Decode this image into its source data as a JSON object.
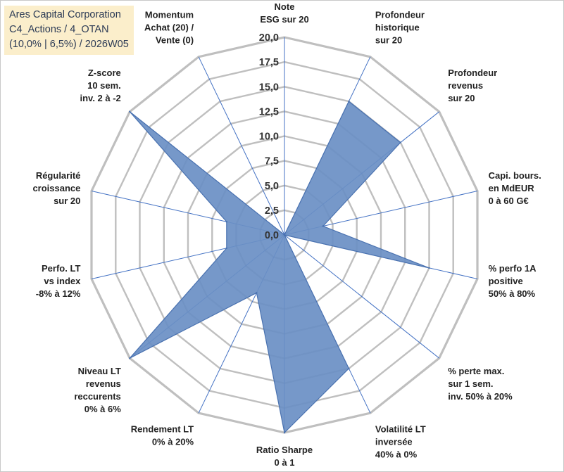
{
  "title_box": {
    "line1": "Ares Capital Corporation",
    "line2": "C4_Actions / 4_OTAN",
    "line3": "(10,0% | 6,5%) / 2026W05",
    "background": "#fbeecb",
    "text_color": "#2b3a55"
  },
  "chart_data": {
    "type": "radar",
    "title": "Ares Capital Corporation",
    "subtitle": "C4_Actions / 4_OTAN (10,0% | 6,5%) / 2026W05",
    "r_range": [
      0,
      20
    ],
    "grid": true,
    "legend": "none",
    "tick_values": [
      0,
      2.5,
      5,
      7.5,
      10,
      12.5,
      15,
      17.5,
      20
    ],
    "tick_labels": [
      "0,0",
      "2,5",
      "5,0",
      "7,5",
      "10,0",
      "12,5",
      "15,0",
      "17,5",
      "20,0"
    ],
    "axes": [
      {
        "label": [
          "Note",
          "ESG sur 20"
        ],
        "value": 0
      },
      {
        "label": [
          "Profondeur",
          "historique",
          "sur 20"
        ],
        "value": 15
      },
      {
        "label": [
          "Profondeur",
          "revenus",
          "sur 20"
        ],
        "value": 15
      },
      {
        "label": [
          "Capi. bours.",
          "en MdEUR",
          "0 à 60 G€"
        ],
        "value": 4
      },
      {
        "label": [
          "% perfo 1A",
          "positive",
          "50% à 80%"
        ],
        "value": 15
      },
      {
        "label": [
          "% perte max.",
          "sur 1 sem.",
          "inv. 50% à 20%"
        ],
        "value": 0
      },
      {
        "label": [
          "Volatilité LT",
          "inversée",
          "40% à 0%"
        ],
        "value": 15
      },
      {
        "label": [
          "Ratio Sharpe",
          "0 à 1"
        ],
        "value": 20
      },
      {
        "label": [
          "Rendement LT",
          "0% à 20%"
        ],
        "value": 6.5
      },
      {
        "label": [
          "Niveau LT",
          "revenus",
          "reccurents",
          "0% à 6%"
        ],
        "value": 20
      },
      {
        "label": [
          "Perfo. LT",
          "vs index",
          "-8% à 12%"
        ],
        "value": 6
      },
      {
        "label": [
          "Régularité",
          "croissance",
          "sur 20"
        ],
        "value": 6
      },
      {
        "label": [
          "Z-score",
          "10 sem.",
          "inv. 2 à -2"
        ],
        "value": 20
      },
      {
        "label": [
          "Momentum",
          "Achat (20) /",
          "Vente (0)"
        ],
        "value": 0
      }
    ],
    "colors": {
      "fill": "#6a8fc4",
      "stroke": "#4a72b0",
      "grid": "#bfbfbf",
      "spoke": "#4472c4"
    }
  }
}
